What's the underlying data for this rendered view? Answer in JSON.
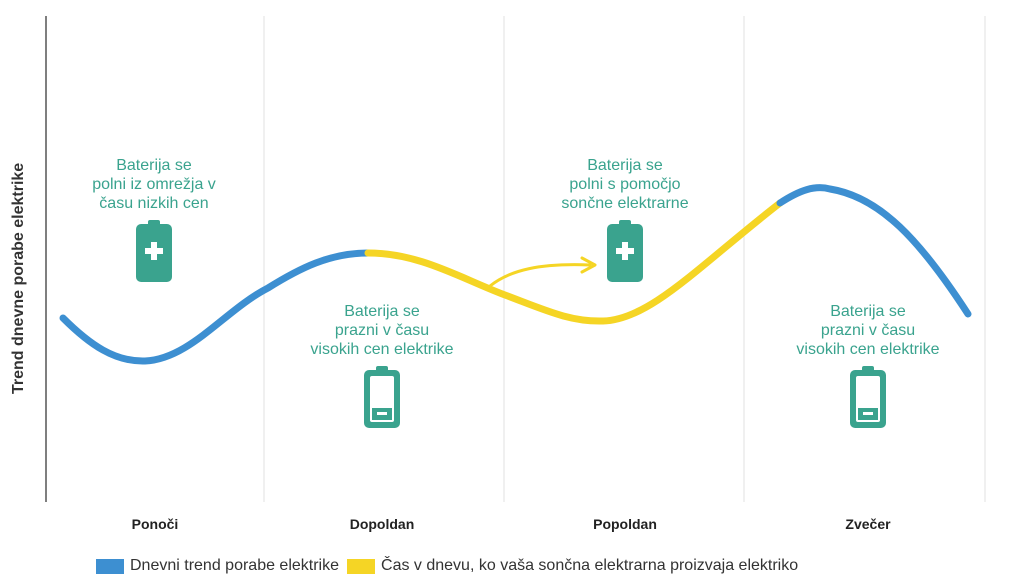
{
  "y_axis_label": "Trend dnevne porabe elektrike",
  "periods": [
    "Ponoči",
    "Dopoldan",
    "Popoldan",
    "Zvečer"
  ],
  "annotations": {
    "grid_charge": [
      "Baterija se",
      "polni iz omrežja v",
      "času nizkih cen"
    ],
    "discharge_morning": [
      "Baterija se",
      "prazni v času",
      "visokih cen elektrike"
    ],
    "solar_charge": [
      "Baterija se",
      "polni s pomočjo",
      "sončne elektrarne"
    ],
    "discharge_evening": [
      "Baterija se",
      "prazni v času",
      "visokih cen elektrike"
    ]
  },
  "icons": [
    "battery-charging-icon",
    "battery-low-icon",
    "battery-charging-icon",
    "battery-low-icon"
  ],
  "legend": {
    "consumption_label": "Dnevni trend porabe elektrike",
    "solar_label": "Čas v dnevu, ko vaša sončna elektrarna proizvaja elektriko"
  },
  "colors": {
    "consumption": "#3d8fd1",
    "solar": "#f5d525",
    "battery": "#3aa38e",
    "accent_text": "#3aa38e"
  }
}
